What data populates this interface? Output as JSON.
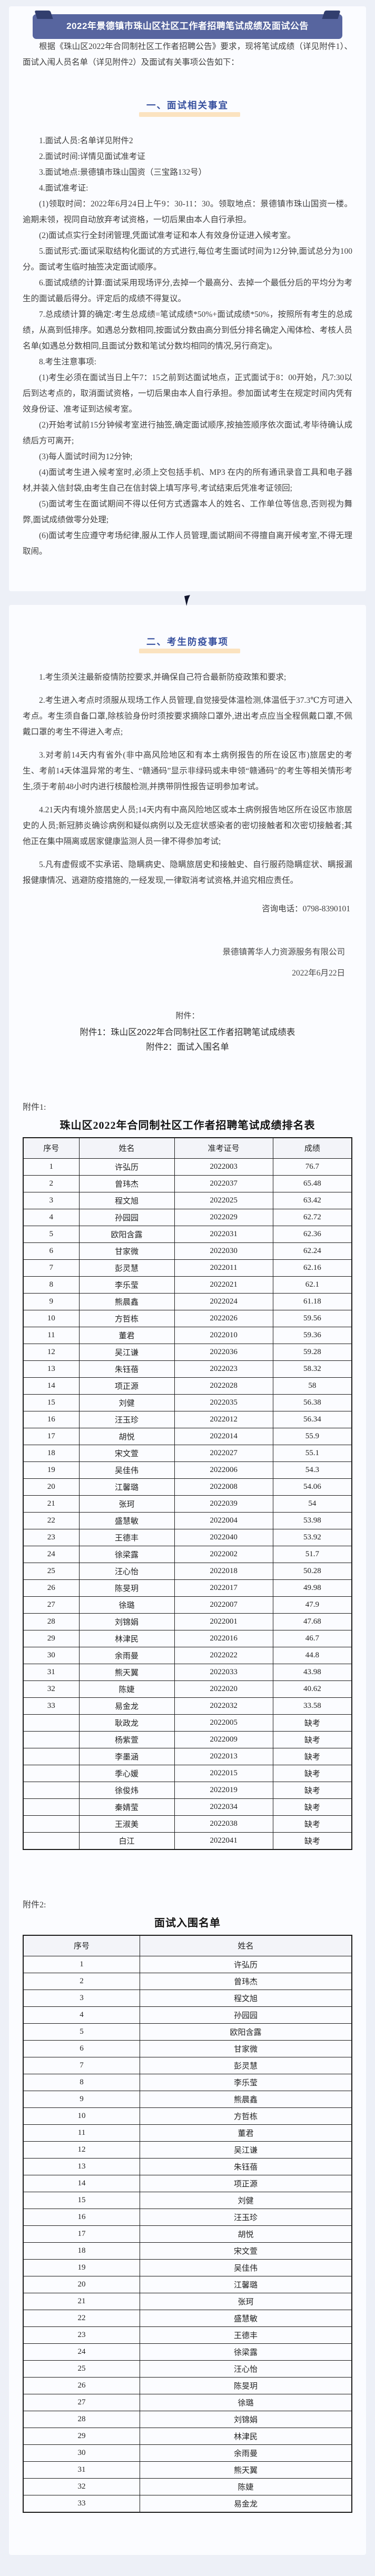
{
  "banner": {
    "title": "2022年景德镇市珠山区社区工作者招聘笔试成绩及面试公告"
  },
  "intro": "根据《珠山区2022年合同制社区工作者招聘公告》要求，现将笔试成绩（详见附件1）、面试入闱人员名单（详见附件2）及面试有关事项公告如下：",
  "section1": {
    "heading": "一、面试相关事宜",
    "paragraphs": [
      "1.面试人员:名单详见附件2",
      "2.面试时间:详情见面试准考证",
      "3.面试地点:景德镇市珠山国资（三宝路132号）",
      "4.面试准考证:",
      "(1)领取时间：2022年6月24日上午9：30-11：30。领取地点：景德镇市珠山国资一楼。逾期未领，视同自动放弃考试资格，一切后果由本人自行承担。",
      "(2)面试点实行全封闭管理,凭面试准考证和本人有效身份证进入候考室。",
      "5.面试形式:面试采取结构化面试的方式进行,每位考生面试时间为12分钟,面试总分为100分。面试考生临时抽签决定面试顺序。",
      "6.面试成绩的计算:面试采用现场评分,去掉一个最高分、去掉一个最低分后的平均分为考生的面试最后得分。评定后的成绩不得复议。",
      "7.总成绩计算的确定:考生总成绩=笔试成绩*50%+面试成绩*50%，按照所有考生的总成绩，从高到低排序。如遇总分数相同,按面试分数由高分到低分排名确定入闱体检、考核人员名单(如遇总分数相同,且面试分数和笔试分数均相同的情况,另行商定)。",
      "8.考生注意事项:",
      "(1)考生必须在面试当日上午7：15之前到达面试地点，正式面试于8：00开始，凡7:30以后到达考点的，取消面试资格，一切后果由本人自行承担。参加面试考生在规定时间内凭有效身份证、准考证到达候考室。",
      "(2)开始考试前15分钟候考室进行抽签,确定面试顺序,按抽签顺序依次面试,考毕待确认成绩后方可离开;",
      "(3)每人面试时间为12分钟;",
      "(4)面试考生进入候考室时,必须上交包括手机、MP3 在内的所有通讯录音工具和电子器材,并装入信封袋,由考生自己在信封袋上填写序号,考试结束后凭准考证领回;",
      "(5)面试考生在面试期间不得以任何方式透露本人的姓名、工作单位等信息,否则视为舞弊,面试成绩做零分处理;",
      "(6)面试考生应遵守考场纪律,服从工作人员管理,面试期间不得擅自离开候考室,不得无理取闹。"
    ]
  },
  "section2": {
    "heading": "二、考生防疫事项",
    "paragraphs": [
      "1.考生须关注最新疫情防控要求,并确保自己符合最新防疫政策和要求;",
      "2.考生进入考点时须服从现场工作人员管理,自觉接受体温检测,体温低于37.3℃方可进入考点。考生须自备口罩,除核验身份时须按要求摘除口罩外,进出考点应当全程佩戴口罩,不佩戴口罩的考生不得进入考点;",
      "3.对考前14天内有省外(非中高风险地区和有本土病例报告的所在设区市)旅居史的考生、考前14天体温异常的考生、“赣通码”显示非绿码或未申领“赣通码”的考生等相关情形考生,须于考前48小时内进行核酸检测,并携带阴性报告证明参加考试。",
      "4.21天内有境外旅居史人员;14天内有中高风险地区或本土病例报告地区所在设区市旅居史的人员;新冠肺炎确诊病例和疑似病例以及无症状感染者的密切接触者和次密切接触者;其他正在集中隔离或居家健康监测人员一律不得参加考试;",
      "5.凡有虚假或不实承诺、隐瞒病史、隐瞒旅居史和接触史、自行服药隐瞒症状、瞒报漏报健康情况、逃避防疫措施的,一经发现,一律取消考试资格,并追究相应责任。"
    ],
    "phone": "咨询电话：0798-8390101",
    "signature": "景德镇菁华人力资源服务有限公司",
    "date": "2022年6月22日"
  },
  "attachments_index": {
    "label": "附件：",
    "item1": "附件1：珠山区2022年合同制社区工作者招聘笔试成绩表",
    "item2": "附件2：面试入围名单"
  },
  "attachment1": {
    "label": "附件1:",
    "table_title": "珠山区2022年合同制社区工作者招聘笔试成绩排名表",
    "headers": [
      "序号",
      "姓名",
      "准考证号",
      "成绩"
    ],
    "rows": [
      [
        "1",
        "许弘历",
        "2022003",
        "76.7"
      ],
      [
        "2",
        "曾玮杰",
        "2022037",
        "65.48"
      ],
      [
        "3",
        "程文旭",
        "2022025",
        "63.42"
      ],
      [
        "4",
        "孙园园",
        "2022029",
        "62.72"
      ],
      [
        "5",
        "欧阳含露",
        "2022031",
        "62.36"
      ],
      [
        "6",
        "甘家微",
        "2022030",
        "62.24"
      ],
      [
        "7",
        "彭灵慧",
        "2022011",
        "62.16"
      ],
      [
        "8",
        "李乐莹",
        "2022021",
        "62.1"
      ],
      [
        "9",
        "熊晨鑫",
        "2022024",
        "61.18"
      ],
      [
        "10",
        "方哲栋",
        "2022026",
        "59.56"
      ],
      [
        "11",
        "董君",
        "2022010",
        "59.36"
      ],
      [
        "12",
        "吴江谦",
        "2022036",
        "59.28"
      ],
      [
        "13",
        "朱钰蓓",
        "2022023",
        "58.32"
      ],
      [
        "14",
        "项正源",
        "2022028",
        "58"
      ],
      [
        "15",
        "刘健",
        "2022035",
        "56.38"
      ],
      [
        "16",
        "汪玉珍",
        "2022012",
        "56.34"
      ],
      [
        "17",
        "胡悦",
        "2022014",
        "55.9"
      ],
      [
        "18",
        "宋文萱",
        "2022027",
        "55.1"
      ],
      [
        "19",
        "吴佳伟",
        "2022006",
        "54.3"
      ],
      [
        "20",
        "江馨璐",
        "2022008",
        "54.06"
      ],
      [
        "21",
        "张珂",
        "2022039",
        "54"
      ],
      [
        "22",
        "盛慧敏",
        "2022004",
        "53.98"
      ],
      [
        "23",
        "王德丰",
        "2022040",
        "53.92"
      ],
      [
        "24",
        "徐梁露",
        "2022002",
        "51.7"
      ],
      [
        "25",
        "汪心怡",
        "2022018",
        "50.28"
      ],
      [
        "26",
        "陈旻玥",
        "2022017",
        "49.98"
      ],
      [
        "27",
        "徐璐",
        "2022007",
        "47.9"
      ],
      [
        "28",
        "刘锦娟",
        "2022001",
        "47.68"
      ],
      [
        "29",
        "林津民",
        "2022016",
        "46.7"
      ],
      [
        "30",
        "余雨曼",
        "2022022",
        "44.8"
      ],
      [
        "31",
        "熊天翼",
        "2022033",
        "43.98"
      ],
      [
        "32",
        "陈婕",
        "2022020",
        "40.62"
      ],
      [
        "33",
        "易金龙",
        "2022032",
        "33.58"
      ],
      [
        "",
        "耿政龙",
        "2022005",
        "缺考"
      ],
      [
        "",
        "杨紫萱",
        "2022009",
        "缺考"
      ],
      [
        "",
        "李墨涵",
        "2022013",
        "缺考"
      ],
      [
        "",
        "季心媛",
        "2022015",
        "缺考"
      ],
      [
        "",
        "徐俊炜",
        "2022019",
        "缺考"
      ],
      [
        "",
        "秦婧莹",
        "2022034",
        "缺考"
      ],
      [
        "",
        "王淑美",
        "2022038",
        "缺考"
      ],
      [
        "",
        "白江",
        "2022041",
        "缺考"
      ]
    ]
  },
  "attachment2": {
    "label": "附件2:",
    "table_title": "面试入围名单",
    "headers": [
      "序号",
      "姓名"
    ],
    "rows": [
      [
        "1",
        "许弘历"
      ],
      [
        "2",
        "曾玮杰"
      ],
      [
        "3",
        "程文旭"
      ],
      [
        "4",
        "孙园园"
      ],
      [
        "5",
        "欧阳含露"
      ],
      [
        "6",
        "甘家微"
      ],
      [
        "7",
        "彭灵慧"
      ],
      [
        "8",
        "李乐莹"
      ],
      [
        "9",
        "熊晨鑫"
      ],
      [
        "10",
        "方哲栋"
      ],
      [
        "11",
        "董君"
      ],
      [
        "12",
        "吴江谦"
      ],
      [
        "13",
        "朱钰蓓"
      ],
      [
        "14",
        "项正源"
      ],
      [
        "15",
        "刘健"
      ],
      [
        "16",
        "汪玉珍"
      ],
      [
        "17",
        "胡悦"
      ],
      [
        "18",
        "宋文萱"
      ],
      [
        "19",
        "吴佳伟"
      ],
      [
        "20",
        "江馨璐"
      ],
      [
        "21",
        "张珂"
      ],
      [
        "22",
        "盛慧敏"
      ],
      [
        "23",
        "王德丰"
      ],
      [
        "24",
        "徐梁露"
      ],
      [
        "25",
        "汪心怡"
      ],
      [
        "26",
        "陈旻玥"
      ],
      [
        "27",
        "徐璐"
      ],
      [
        "28",
        "刘锦娟"
      ],
      [
        "29",
        "林津民"
      ],
      [
        "30",
        "余雨曼"
      ],
      [
        "31",
        "熊天翼"
      ],
      [
        "32",
        "陈婕"
      ],
      [
        "33",
        "易金龙"
      ]
    ]
  }
}
